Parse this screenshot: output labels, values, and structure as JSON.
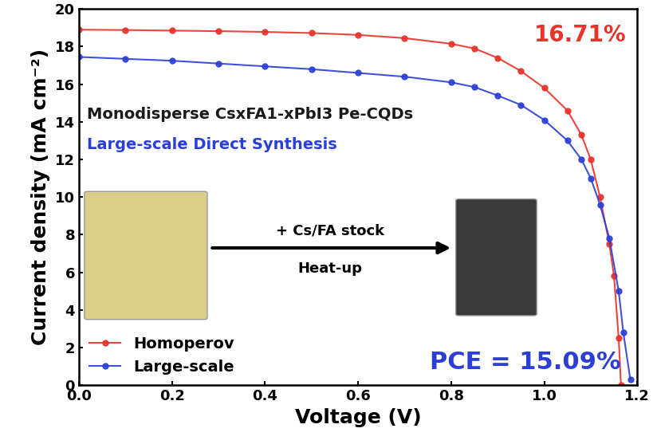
{
  "chart_data": {
    "type": "line",
    "xlabel": "Voltage (V)",
    "ylabel": "Current density (mA cm⁻²)",
    "xlim": [
      0.0,
      1.2
    ],
    "xticks": [
      {
        "value": 0.0,
        "label": "0.0"
      },
      {
        "value": 0.2,
        "label": "0.2"
      },
      {
        "value": 0.4,
        "label": "0.4"
      },
      {
        "value": 0.6,
        "label": "0.6"
      },
      {
        "value": 0.8,
        "label": "0.8"
      },
      {
        "value": 1.0,
        "label": "1.0"
      },
      {
        "value": 1.2,
        "label": "1.2"
      }
    ],
    "ylim": [
      0,
      20
    ],
    "yticks": [
      0,
      2,
      4,
      6,
      8,
      10,
      12,
      14,
      16,
      18,
      20
    ],
    "legend": "lower left",
    "series": [
      {
        "name": "Homoperov",
        "color": "#e8322a",
        "marker": "o",
        "line_style": "solid",
        "x": [
          0.0,
          0.1,
          0.2,
          0.3,
          0.4,
          0.5,
          0.6,
          0.7,
          0.8,
          0.85,
          0.9,
          0.95,
          1.0,
          1.05,
          1.08,
          1.1,
          1.12,
          1.14,
          1.15,
          1.16,
          1.165
        ],
        "values": [
          18.9,
          18.88,
          18.85,
          18.82,
          18.78,
          18.72,
          18.62,
          18.45,
          18.15,
          17.9,
          17.4,
          16.7,
          15.8,
          14.6,
          13.3,
          12.0,
          10.0,
          7.5,
          5.8,
          2.5,
          0.0
        ]
      },
      {
        "name": "Large-scale",
        "color": "#2b3fd6",
        "marker": "o",
        "line_style": "solid",
        "x": [
          0.0,
          0.1,
          0.2,
          0.3,
          0.4,
          0.5,
          0.6,
          0.7,
          0.8,
          0.85,
          0.9,
          0.95,
          1.0,
          1.05,
          1.08,
          1.1,
          1.12,
          1.14,
          1.16,
          1.17,
          1.185
        ],
        "values": [
          17.45,
          17.35,
          17.25,
          17.1,
          16.95,
          16.8,
          16.6,
          16.4,
          16.1,
          15.85,
          15.4,
          14.9,
          14.1,
          13.0,
          12.0,
          11.0,
          9.6,
          7.8,
          5.0,
          2.8,
          0.3
        ]
      }
    ],
    "annotations": [
      {
        "text": "16.71%",
        "color": "#e8322a"
      },
      {
        "text": "PCE = 15.09%",
        "color": "#2b3fd6"
      },
      {
        "text": "Monodisperse CsxFA1-xPbI3 Pe-CQDs",
        "color": "#1a1a1a"
      },
      {
        "text": "Large-scale Direct Synthesis",
        "color": "#2b3fd6"
      },
      {
        "text": "+ Cs/FA stock",
        "color": "#000000"
      },
      {
        "text": "Heat-up",
        "color": "#000000"
      }
    ]
  }
}
